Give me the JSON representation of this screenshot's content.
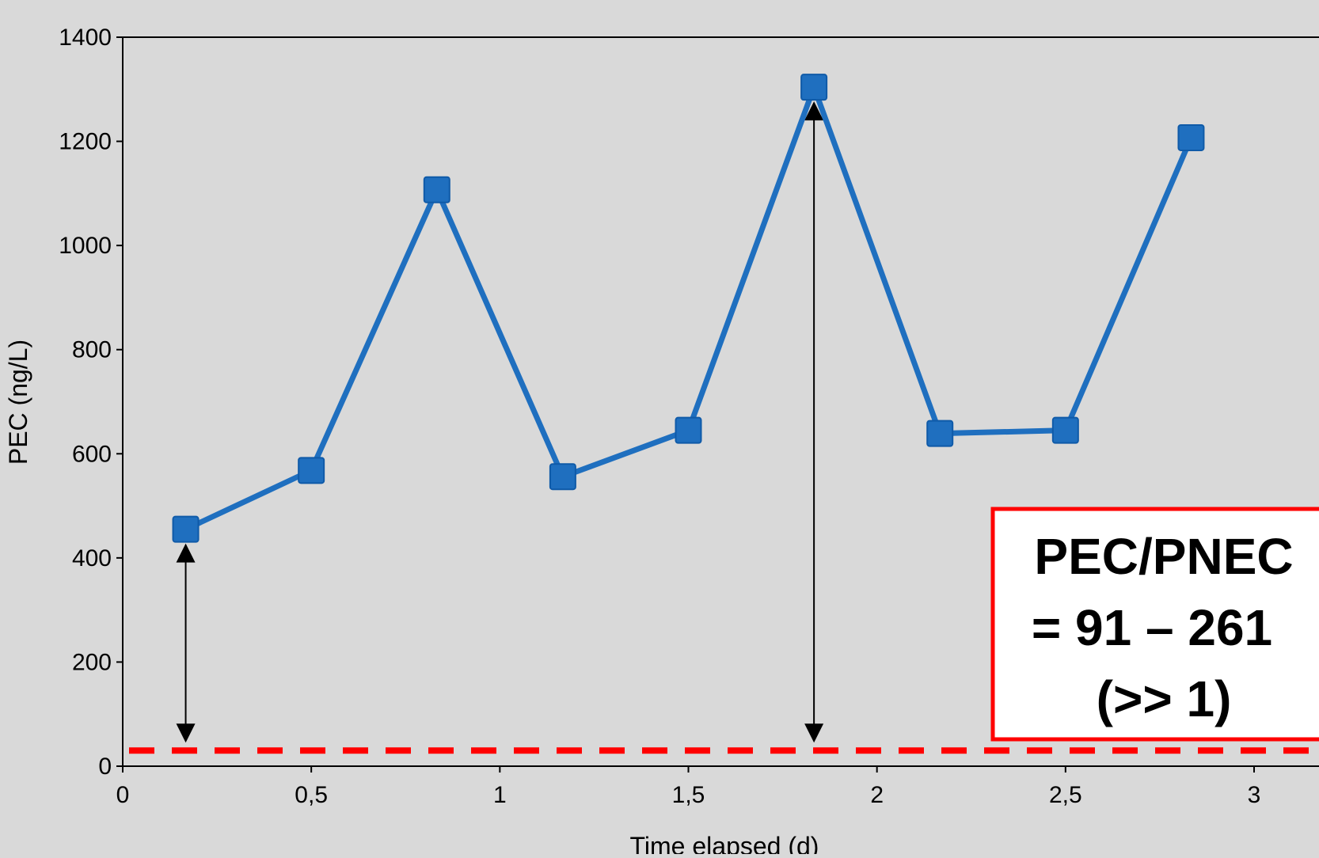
{
  "chart_data": {
    "type": "line",
    "title": "",
    "xlabel": "Time elapsed (d)",
    "ylabel": "PEC (ng/L)",
    "xlim": [
      0,
      3
    ],
    "ylim": [
      0,
      1400
    ],
    "x_ticks": [
      0,
      0.5,
      1,
      1.5,
      2,
      2.5,
      3
    ],
    "x_tick_labels": [
      "0",
      "0,5",
      "1",
      "1,5",
      "2",
      "2,5",
      "3"
    ],
    "y_ticks": [
      0,
      200,
      400,
      600,
      800,
      1000,
      1200,
      1400
    ],
    "y_tick_labels": [
      "0",
      "200",
      "400",
      "600",
      "800",
      "1000",
      "1200",
      "1400"
    ],
    "grid": false,
    "series": [
      {
        "color": "#1f6fbf",
        "marker": "square",
        "x": [
          0.167,
          0.5,
          0.833,
          1.167,
          1.5,
          1.833,
          2.167,
          2.5,
          2.833
        ],
        "y": [
          455,
          568,
          1107,
          556,
          645,
          1304,
          639,
          645,
          1207
        ]
      }
    ],
    "reference_line": {
      "style": "dashed",
      "color": "#ff0000",
      "y": 30
    },
    "arrows": [
      {
        "x": 0.167,
        "y_from": 30,
        "y_to": 455
      },
      {
        "x": 1.833,
        "y_from": 30,
        "y_to": 1304
      }
    ],
    "callout": {
      "lines": [
        "PEC/PNEC",
        "= 91 – 261",
        "(>> 1)"
      ],
      "border_color": "#ff0000"
    }
  }
}
